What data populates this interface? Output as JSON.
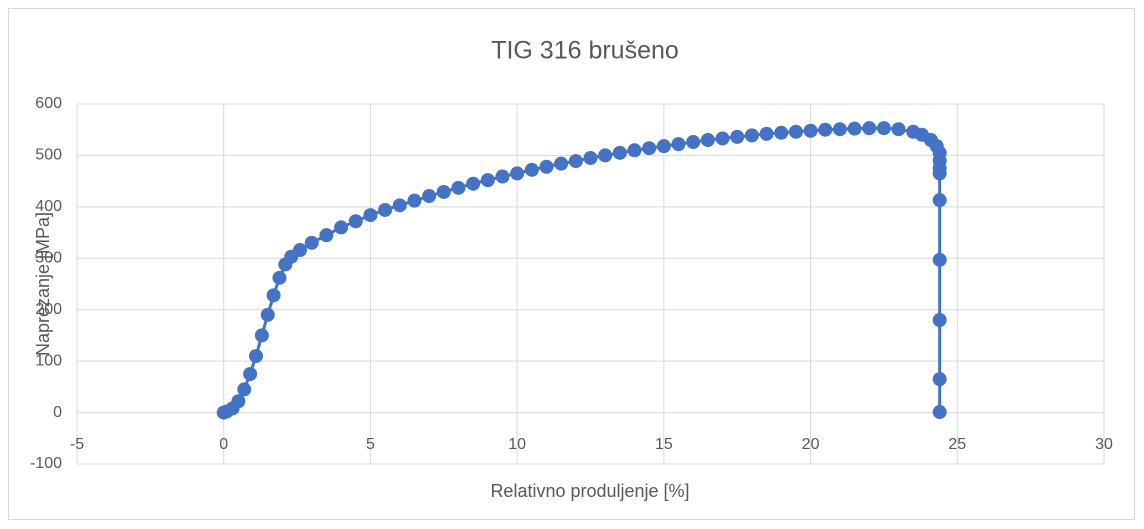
{
  "chart_data": {
    "type": "scatter",
    "title": "TIG 316 brušeno",
    "x_label": "Relativno produljenje [%]",
    "y_label": "Naprezanje [MPa]",
    "series": [
      {
        "name": "TIG 316 brušeno",
        "color": "#4472c4",
        "x": [
          0,
          0.1,
          0.3,
          0.5,
          0.7,
          0.9,
          1.1,
          1.3,
          1.5,
          1.7,
          1.9,
          2.1,
          2.3,
          2.6,
          3.0,
          3.5,
          4.0,
          4.5,
          5.0,
          5.5,
          6.0,
          6.5,
          7.0,
          7.5,
          8.0,
          8.5,
          9.0,
          9.5,
          10,
          10.5,
          11,
          11.5,
          12,
          12.5,
          13,
          13.5,
          14,
          14.5,
          15,
          15.5,
          16,
          16.5,
          17,
          17.5,
          18,
          18.5,
          19,
          19.5,
          20,
          20.5,
          21,
          21.5,
          22,
          22.5,
          23,
          23.5,
          23.8,
          24.1,
          24.3,
          24.4,
          24.4,
          24.4,
          24.4,
          24.4,
          24.4,
          24.4,
          24.4,
          24.4
        ],
        "values": [
          0,
          2,
          8,
          22,
          45,
          75,
          110,
          150,
          190,
          228,
          262,
          288,
          303,
          316,
          330,
          345,
          360,
          372,
          384,
          394,
          403,
          412,
          421,
          429,
          437,
          445,
          452,
          459,
          465,
          472,
          478,
          484,
          489,
          495,
          500,
          505,
          510,
          514,
          518,
          522,
          526,
          530,
          533,
          536,
          539,
          542,
          544,
          546,
          548,
          550,
          551,
          552,
          553,
          553,
          551,
          546,
          540,
          530,
          518,
          505,
          490,
          475,
          465,
          413,
          297,
          180,
          65,
          1
        ]
      }
    ],
    "xlim": [
      -5,
      30
    ],
    "xticks": [
      -5,
      0,
      5,
      10,
      15,
      20,
      25,
      30
    ],
    "ylim": [
      -100,
      600
    ],
    "yticks": [
      -100,
      0,
      100,
      200,
      300,
      400,
      500,
      600
    ],
    "grid": true
  }
}
